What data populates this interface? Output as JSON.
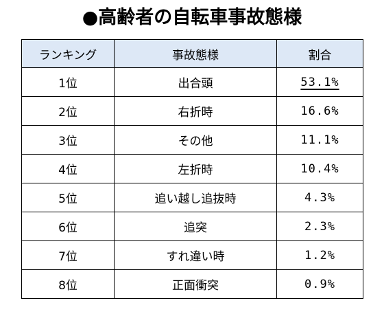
{
  "title": "●高齢者の自転車事故態様",
  "table": {
    "headers": [
      "ランキング",
      "事故態様",
      "割合"
    ],
    "rows": [
      {
        "rank": "1位",
        "type": "出合頭",
        "share": "53.1%"
      },
      {
        "rank": "2位",
        "type": "右折時",
        "share": "16.6%"
      },
      {
        "rank": "3位",
        "type": "その他",
        "share": "11.1%"
      },
      {
        "rank": "4位",
        "type": "左折時",
        "share": "10.4%"
      },
      {
        "rank": "5位",
        "type": "追い越し追抜時",
        "share": "4.3%"
      },
      {
        "rank": "6位",
        "type": "追突",
        "share": "2.3%"
      },
      {
        "rank": "7位",
        "type": "すれ違い時",
        "share": "1.2%"
      },
      {
        "rank": "8位",
        "type": "正面衝突",
        "share": "0.9%"
      }
    ]
  },
  "colors": {
    "header_background": "#dde8f6",
    "border": "#000000",
    "text": "#000000"
  }
}
